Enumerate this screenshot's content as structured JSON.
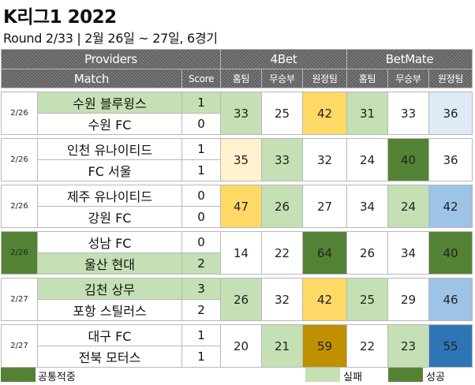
{
  "title": "K리그1 2022",
  "subtitle": "Round 2/33 | 2월 26일 ~ 27일, 6경기",
  "header": {
    "providers_label": "Providers",
    "match_label": "Match",
    "score_label": "Score",
    "provider_a": "4Bet",
    "provider_b": "BetMate",
    "col_home": "홈팀",
    "col_draw": "무승부",
    "col_away": "원정팀"
  },
  "colors": {
    "light_green": "#c5e0b4",
    "dark_green": "#548235",
    "gold_dark": "#bf9000",
    "gold": "#ffd966",
    "gold_light": "#fff2cc",
    "blue_dark": "#2e75b6",
    "blue": "#9dc3e6",
    "blue_light": "#deebf7",
    "white": "#ffffff"
  },
  "matches": [
    {
      "date": "2/26",
      "date_bg": "white",
      "home": "수원 블루윙스",
      "away": "수원 FC",
      "home_score": "1",
      "away_score": "0",
      "home_bg": "light_green",
      "away_bg": "white",
      "odds_4bet": [
        "33",
        "25",
        "42"
      ],
      "odds_4bet_bg": [
        "light_green",
        "white",
        "gold"
      ],
      "odds_betmate": [
        "31",
        "33",
        "36"
      ],
      "odds_betmate_bg": [
        "light_green",
        "white",
        "blue_light"
      ]
    },
    {
      "date": "2/26",
      "date_bg": "white",
      "home": "인천 유나이티드",
      "away": "FC 서울",
      "home_score": "1",
      "away_score": "1",
      "home_bg": "white",
      "away_bg": "white",
      "odds_4bet": [
        "35",
        "33",
        "32"
      ],
      "odds_4bet_bg": [
        "gold_light",
        "light_green",
        "white"
      ],
      "odds_betmate": [
        "24",
        "40",
        "36"
      ],
      "odds_betmate_bg": [
        "white",
        "dark_green",
        "white"
      ]
    },
    {
      "date": "2/26",
      "date_bg": "white",
      "home": "제주 유나이티드",
      "away": "강원 FC",
      "home_score": "0",
      "away_score": "0",
      "home_bg": "white",
      "away_bg": "white",
      "odds_4bet": [
        "47",
        "26",
        "27"
      ],
      "odds_4bet_bg": [
        "gold",
        "light_green",
        "white"
      ],
      "odds_betmate": [
        "34",
        "24",
        "42"
      ],
      "odds_betmate_bg": [
        "white",
        "light_green",
        "blue"
      ]
    },
    {
      "date": "2/26",
      "date_bg": "dark_green",
      "home": "성남 FC",
      "away": "울산 현대",
      "home_score": "0",
      "away_score": "2",
      "home_bg": "white",
      "away_bg": "light_green",
      "odds_4bet": [
        "14",
        "22",
        "64"
      ],
      "odds_4bet_bg": [
        "white",
        "white",
        "dark_green"
      ],
      "odds_betmate": [
        "26",
        "34",
        "40"
      ],
      "odds_betmate_bg": [
        "white",
        "white",
        "dark_green"
      ]
    },
    {
      "date": "2/27",
      "date_bg": "white",
      "home": "김천 상무",
      "away": "포항 스틸러스",
      "home_score": "3",
      "away_score": "2",
      "home_bg": "light_green",
      "away_bg": "white",
      "odds_4bet": [
        "26",
        "32",
        "42"
      ],
      "odds_4bet_bg": [
        "light_green",
        "white",
        "gold"
      ],
      "odds_betmate": [
        "25",
        "29",
        "46"
      ],
      "odds_betmate_bg": [
        "light_green",
        "white",
        "blue"
      ]
    },
    {
      "date": "2/27",
      "date_bg": "white",
      "home": "대구 FC",
      "away": "전북 모터스",
      "home_score": "1",
      "away_score": "1",
      "home_bg": "white",
      "away_bg": "white",
      "odds_4bet": [
        "20",
        "21",
        "59"
      ],
      "odds_4bet_bg": [
        "white",
        "light_green",
        "gold_dark"
      ],
      "odds_betmate": [
        "22",
        "23",
        "55"
      ],
      "odds_betmate_bg": [
        "white",
        "light_green",
        "blue_dark"
      ]
    }
  ],
  "legend": {
    "common_hit": "공통적중",
    "fail": "실패",
    "success": "성공"
  }
}
